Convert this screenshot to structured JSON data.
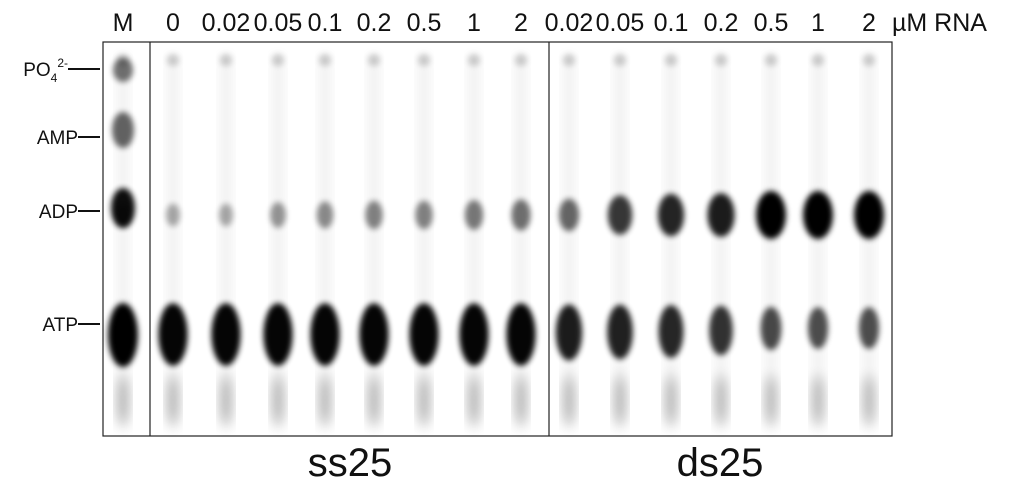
{
  "marker": "M",
  "lanes": {
    "ss": [
      "0",
      "0.02",
      "0.05",
      "0.1",
      "0.2",
      "0.5",
      "1",
      "2"
    ],
    "ds": [
      "0.02",
      "0.05",
      "0.1",
      "0.2",
      "0.5",
      "1",
      "2"
    ]
  },
  "unit": "µM RNA",
  "rows": {
    "phosphate": {
      "base": "PO",
      "sub": "4",
      "sup": "2-"
    },
    "amp": "AMP",
    "adp": "ADP",
    "atp": "ATP"
  },
  "groups": {
    "ss": "ss25",
    "ds": "ds25"
  }
}
